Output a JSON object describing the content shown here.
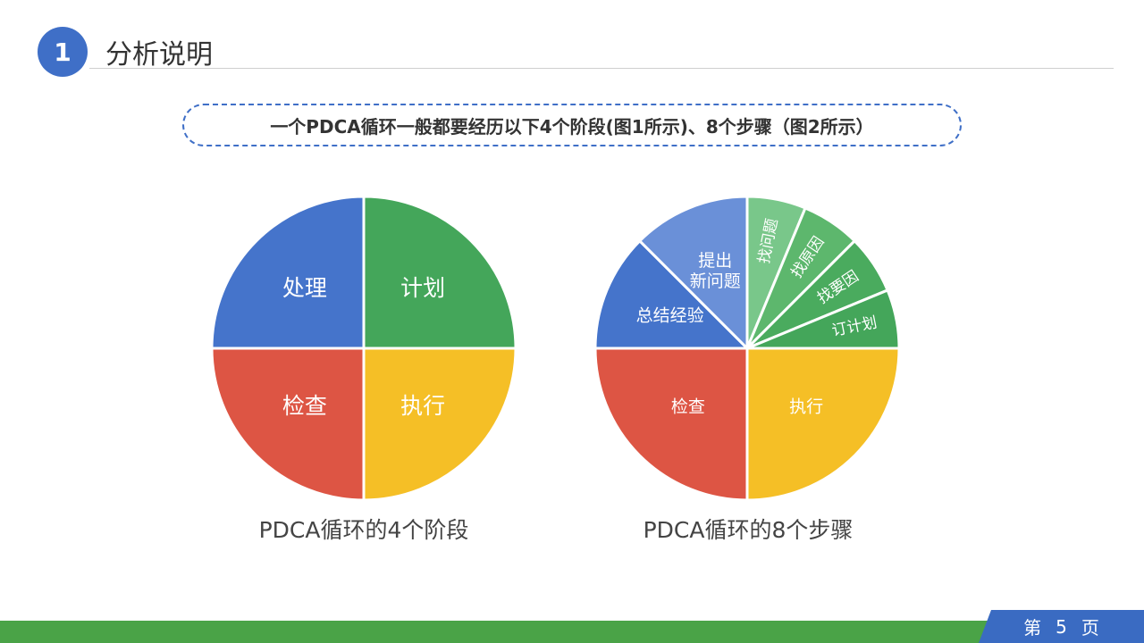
{
  "header": {
    "badge_number": "1",
    "title": "分析说明"
  },
  "subtitle": "一个PDCA循环一般都要经历以下4个阶段(图1所示)、8个步骤（图2所示）",
  "chart_data": [
    {
      "type": "pie",
      "title": "PDCA循环的4个阶段",
      "slices": [
        {
          "label": "计划",
          "value": 25,
          "color": "#44a65a"
        },
        {
          "label": "执行",
          "value": 25,
          "color": "#f5bf26"
        },
        {
          "label": "检查",
          "value": 25,
          "color": "#dd5544"
        },
        {
          "label": "处理",
          "value": 25,
          "color": "#4574cb"
        }
      ]
    },
    {
      "type": "pie",
      "title": "PDCA循环的8个步骤",
      "slices": [
        {
          "label": "找问题",
          "value": 6.25,
          "color": "#79c78a"
        },
        {
          "label": "找原因",
          "value": 6.25,
          "color": "#5db76d"
        },
        {
          "label": "找要因",
          "value": 6.25,
          "color": "#4aab5e"
        },
        {
          "label": "订计划",
          "value": 6.25,
          "color": "#44a65a"
        },
        {
          "label": "执行",
          "value": 25,
          "color": "#f5bf26"
        },
        {
          "label": "检查",
          "value": 25,
          "color": "#dd5544"
        },
        {
          "label": "总结经验",
          "value": 12.5,
          "color": "#4574cb"
        },
        {
          "label": "提出新问题",
          "value": 12.5,
          "color": "#6a90d8"
        }
      ]
    }
  ],
  "footer": {
    "page_prefix": "第",
    "page_number": "5",
    "page_suffix": "页"
  }
}
